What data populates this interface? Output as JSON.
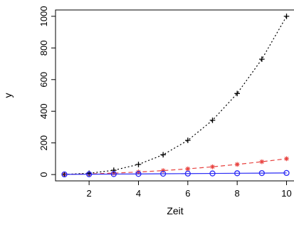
{
  "chart_data": {
    "type": "line",
    "title": "",
    "xlabel": "Zeit",
    "ylabel": "y",
    "xlim": [
      0.64,
      10.36
    ],
    "ylim": [
      -40,
      1040
    ],
    "x_ticks": [
      2,
      4,
      6,
      8,
      10
    ],
    "y_ticks": [
      0,
      200,
      400,
      600,
      800,
      1000
    ],
    "x_tick_labels": [
      "2",
      "4",
      "6",
      "8",
      "10"
    ],
    "y_tick_labels": [
      "0",
      "200",
      "400",
      "600",
      "800",
      "1000"
    ],
    "grid": false,
    "x": [
      1,
      2,
      3,
      4,
      5,
      6,
      7,
      8,
      9,
      10
    ],
    "series": [
      {
        "values": [
          1,
          4,
          9,
          16,
          25,
          36,
          49,
          64,
          81,
          100
        ],
        "color": "#e8423f",
        "line_style": "dashed",
        "marker": "asterisk"
      },
      {
        "values": [
          1,
          8,
          27,
          64,
          125,
          216,
          343,
          512,
          729,
          1000
        ],
        "color": "#000000",
        "line_style": "dotted",
        "marker": "plus"
      },
      {
        "values": [
          1,
          2,
          3,
          4,
          5,
          6,
          7,
          8,
          9,
          10
        ],
        "color": "#2a2af5",
        "line_style": "solid",
        "marker": "circle"
      }
    ]
  }
}
